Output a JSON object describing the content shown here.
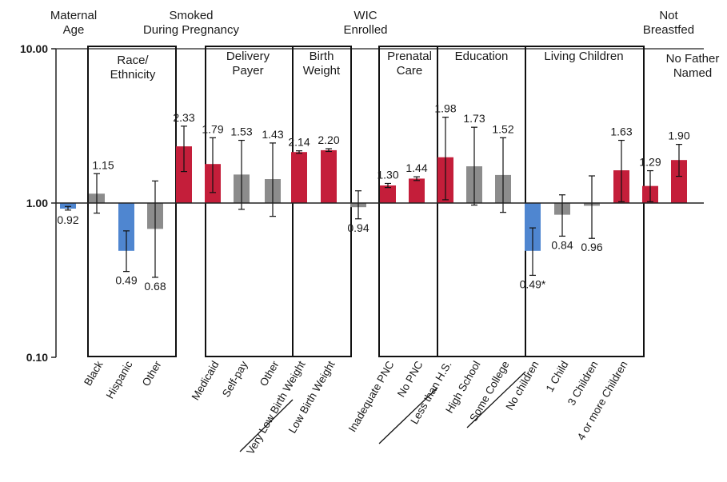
{
  "chart_data": {
    "type": "bar",
    "scale": "log",
    "ylim": [
      0.1,
      10
    ],
    "yticks": [
      "0.10",
      "1.00",
      "10.00"
    ],
    "baseline": 1,
    "colors": {
      "red": "#c41e3a",
      "gray": "#8c8c8c",
      "blue": "#4f86d0"
    },
    "headers": [
      {
        "lines": [
          "Maternal",
          "Age"
        ]
      },
      {
        "lines": [
          "Race/",
          "Ethnicity"
        ]
      },
      {
        "lines": [
          "Smoked",
          "During Pregnancy"
        ]
      },
      {
        "lines": [
          "Delivery",
          "Payer"
        ]
      },
      {
        "lines": [
          "Birth",
          "Weight"
        ]
      },
      {
        "lines": [
          "WIC",
          "Enrolled"
        ]
      },
      {
        "lines": [
          "Prenatal",
          "Care"
        ]
      },
      {
        "lines": [
          "Education"
        ]
      },
      {
        "lines": [
          "Living Children"
        ]
      },
      {
        "lines": [
          "Not",
          "Breastfed"
        ]
      },
      {
        "lines": [
          "No Father",
          "Named"
        ]
      }
    ],
    "bars": [
      {
        "category": "",
        "value": 0.92,
        "label": "0.92",
        "ci": [
          0.9,
          0.95
        ],
        "color": "blue"
      },
      {
        "category": "Black",
        "value": 1.15,
        "label": "1.15",
        "ci": [
          0.86,
          1.55
        ],
        "color": "gray"
      },
      {
        "category": "Hispanic",
        "value": 0.49,
        "label": "0.49",
        "ci": [
          0.36,
          0.66
        ],
        "color": "blue"
      },
      {
        "category": "Other",
        "value": 0.68,
        "label": "0.68",
        "ci": [
          0.33,
          1.39
        ],
        "color": "gray"
      },
      {
        "category": "",
        "value": 2.33,
        "label": "2.33",
        "ci": [
          1.6,
          3.15
        ],
        "color": "red"
      },
      {
        "category": "Medicaid",
        "value": 1.79,
        "label": "1.79",
        "ci": [
          1.17,
          2.65
        ],
        "color": "red"
      },
      {
        "category": "Self-pay",
        "value": 1.53,
        "label": "1.53",
        "ci": [
          0.91,
          2.55
        ],
        "color": "gray"
      },
      {
        "category": "Other",
        "value": 1.43,
        "label": "1.43",
        "ci": [
          0.82,
          2.45
        ],
        "color": "gray"
      },
      {
        "category": "Very Low Birth Weight",
        "value": 2.14,
        "label": "2.14",
        "ci": [
          2.1,
          2.18
        ],
        "color": "red"
      },
      {
        "category": "Low Birth Weight",
        "value": 2.2,
        "label": "2.20",
        "ci": [
          2.16,
          2.25
        ],
        "color": "red"
      },
      {
        "category": "",
        "value": 0.94,
        "label": "0.94",
        "ci": [
          0.79,
          1.2
        ],
        "color": "gray"
      },
      {
        "category": "Inadequate PNC",
        "value": 1.3,
        "label": "1.30",
        "ci": [
          1.26,
          1.34
        ],
        "color": "red"
      },
      {
        "category": "No PNC",
        "value": 1.44,
        "label": "1.44",
        "ci": [
          1.4,
          1.48
        ],
        "color": "red"
      },
      {
        "category": "Less than H.S.",
        "value": 1.98,
        "label": "1.98",
        "ci": [
          1.05,
          3.6
        ],
        "color": "red"
      },
      {
        "category": "High School",
        "value": 1.73,
        "label": "1.73",
        "ci": [
          0.97,
          3.1
        ],
        "color": "gray"
      },
      {
        "category": "Some College",
        "value": 1.52,
        "label": "1.52",
        "ci": [
          0.87,
          2.65
        ],
        "color": "gray"
      },
      {
        "category": "No children",
        "value": 0.49,
        "label": "0.49*",
        "ci": [
          0.34,
          0.69
        ],
        "color": "blue"
      },
      {
        "category": "1 Child",
        "value": 0.84,
        "label": "0.84",
        "ci": [
          0.61,
          1.13
        ],
        "color": "gray"
      },
      {
        "category": "3 Children",
        "value": 0.96,
        "label": "0.96",
        "ci": [
          0.59,
          1.5
        ],
        "color": "gray"
      },
      {
        "category": "4 or more Children",
        "value": 1.63,
        "label": "1.63",
        "ci": [
          1.02,
          2.55
        ],
        "color": "red"
      },
      {
        "category": "",
        "value": 1.29,
        "label": "1.29",
        "ci": [
          1.02,
          1.62
        ],
        "color": "red"
      },
      {
        "category": "",
        "value": 1.9,
        "label": "1.90",
        "ci": [
          1.49,
          2.4
        ],
        "color": "red"
      }
    ]
  }
}
